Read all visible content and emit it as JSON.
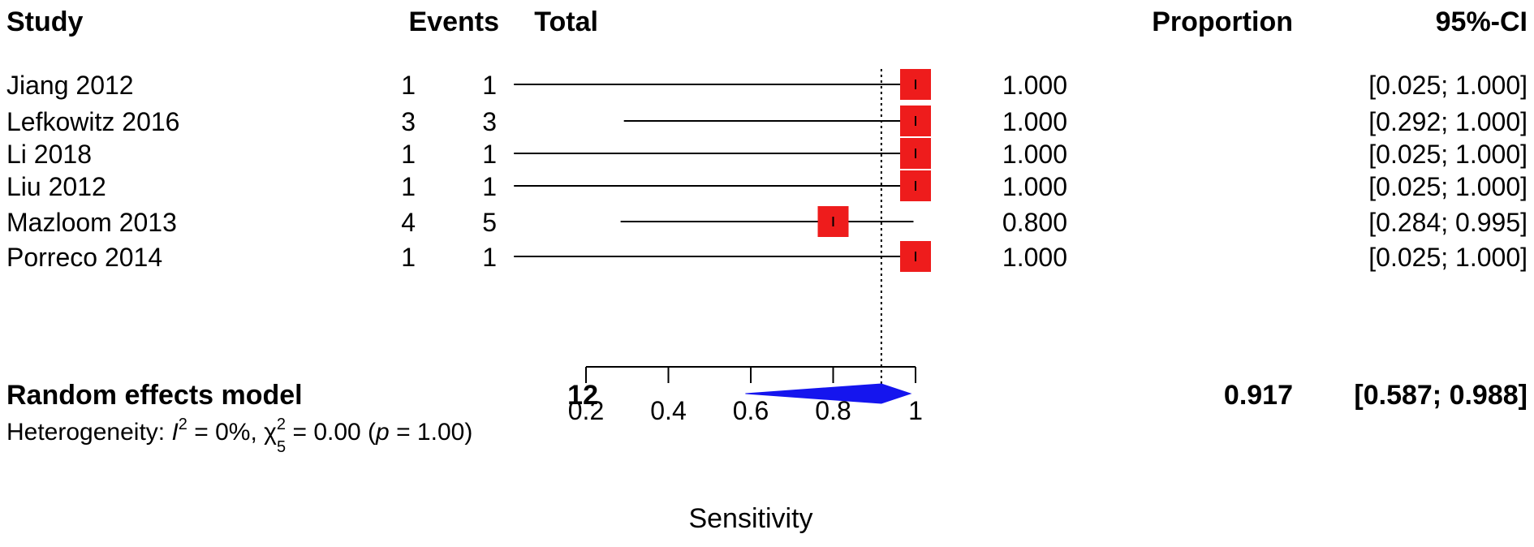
{
  "chart_data": {
    "type": "forest",
    "columns": {
      "study": "Study",
      "events": "Events",
      "total": "Total",
      "proportion": "Proportion",
      "ci": "95%-CI"
    },
    "studies": [
      {
        "study": "Jiang 2012",
        "events": "1",
        "total": "1",
        "proportion": 1.0,
        "ci_lower": 0.025,
        "ci_upper": 1.0,
        "proportion_text": "1.000",
        "ci_text": "[0.025; 1.000]"
      },
      {
        "study": "Lefkowitz 2016",
        "events": "3",
        "total": "3",
        "proportion": 1.0,
        "ci_lower": 0.292,
        "ci_upper": 1.0,
        "proportion_text": "1.000",
        "ci_text": "[0.292; 1.000]"
      },
      {
        "study": "Li 2018",
        "events": "1",
        "total": "1",
        "proportion": 1.0,
        "ci_lower": 0.025,
        "ci_upper": 1.0,
        "proportion_text": "1.000",
        "ci_text": "[0.025; 1.000]"
      },
      {
        "study": "Liu 2012",
        "events": "1",
        "total": "1",
        "proportion": 1.0,
        "ci_lower": 0.025,
        "ci_upper": 1.0,
        "proportion_text": "1.000",
        "ci_text": "[0.025; 1.000]"
      },
      {
        "study": "Mazloom 2013",
        "events": "4",
        "total": "5",
        "proportion": 0.8,
        "ci_lower": 0.284,
        "ci_upper": 0.995,
        "proportion_text": "0.800",
        "ci_text": "[0.284; 0.995]"
      },
      {
        "study": "Porreco 2014",
        "events": "1",
        "total": "1",
        "proportion": 1.0,
        "ci_lower": 0.025,
        "ci_upper": 1.0,
        "proportion_text": "1.000",
        "ci_text": "[0.025; 1.000]"
      }
    ],
    "summary": {
      "label": "Random effects model",
      "total": "12",
      "proportion": 0.917,
      "ci_lower": 0.587,
      "ci_upper": 0.988,
      "proportion_text": "0.917",
      "ci_text": "[0.587; 0.988]"
    },
    "heterogeneity": {
      "prefix": "Heterogeneity: ",
      "i2_symbol": "I",
      "i2_exp": "2",
      "i2_value": " = 0%, ",
      "chi_symbol": "χ",
      "chi_exp": "2",
      "chi_sub": "5",
      "chi_value": " = 0.00 (",
      "p_symbol": "p",
      "p_value": " = 1.00)"
    },
    "xaxis": {
      "label": "Sensitivity",
      "range": [
        0.2,
        1.0
      ],
      "ticks": [
        0.2,
        0.4,
        0.6,
        0.8,
        1.0
      ],
      "tick_labels": [
        "0.2",
        "0.4",
        "0.6",
        "0.8",
        "1"
      ]
    },
    "reference_line": 0.917,
    "colors": {
      "study_marker": "#ee1c1c",
      "summary_diamond": "#1515ee",
      "line": "#000000"
    }
  }
}
